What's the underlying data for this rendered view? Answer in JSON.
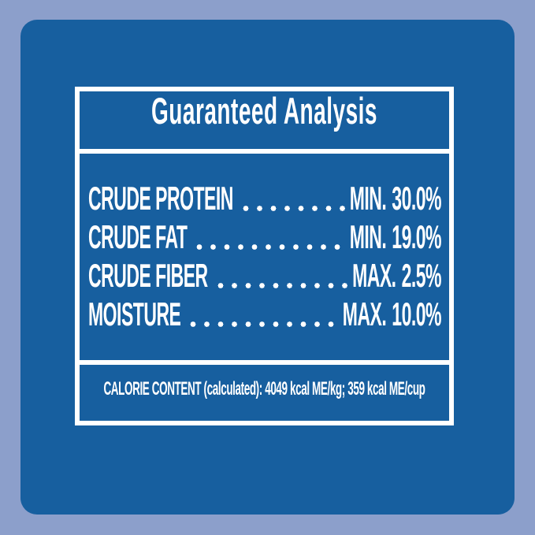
{
  "colors": {
    "background": "#8c9fcb",
    "panel": "#175f9f",
    "border": "#ffffff",
    "text": "#ffffff"
  },
  "label": {
    "title": "Guaranteed Analysis",
    "rows": [
      {
        "nutrient": "CRUDE PROTEIN",
        "basis": "MIN.",
        "value": "30.0%"
      },
      {
        "nutrient": "CRUDE FAT",
        "basis": "MIN.",
        "value": "19.0%"
      },
      {
        "nutrient": "CRUDE FIBER",
        "basis": "MAX.",
        "value": "2.5%"
      },
      {
        "nutrient": "MOISTURE",
        "basis": "MAX.",
        "value": "10.0%"
      }
    ],
    "calorie_statement": "CALORIE CONTENT (calculated): 4049 kcal ME/kg; 359 kcal ME/cup"
  }
}
